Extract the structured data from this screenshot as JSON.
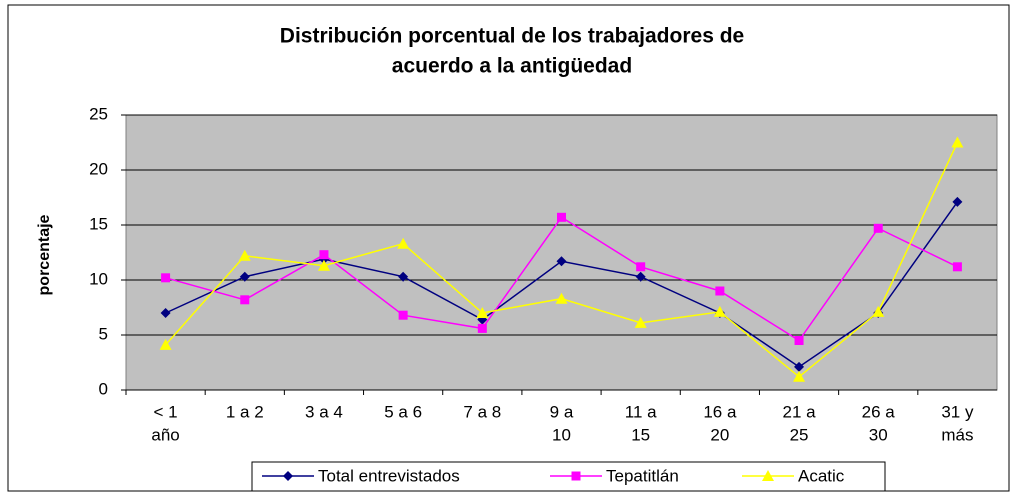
{
  "chart_data": {
    "type": "line",
    "title": [
      "Distribución porcentual de los trabajadores de",
      "acuerdo a la antigüedad"
    ],
    "y_label": "porcentaje",
    "categories": [
      [
        "< 1",
        "año"
      ],
      [
        "1 a 2"
      ],
      [
        "3 a 4"
      ],
      [
        "5 a 6"
      ],
      [
        "7 a 8"
      ],
      [
        "9 a",
        "10"
      ],
      [
        "11 a",
        "15"
      ],
      [
        "16 a",
        "20"
      ],
      [
        "21 a",
        "25"
      ],
      [
        "26 a",
        "30"
      ],
      [
        "31 y",
        "más"
      ]
    ],
    "series": [
      {
        "name": "Total entrevistados",
        "color": "#000080",
        "marker": "diamond",
        "values": [
          7.0,
          10.3,
          11.9,
          10.3,
          6.4,
          11.7,
          10.3,
          7.0,
          2.1,
          7.0,
          17.1
        ]
      },
      {
        "name": "Tepatitlán",
        "color": "#ff00ff",
        "marker": "square",
        "values": [
          10.2,
          8.2,
          12.3,
          6.8,
          5.6,
          15.7,
          11.2,
          9.0,
          4.5,
          14.7,
          11.2
        ]
      },
      {
        "name": "Acatic",
        "color": "#ffff00",
        "marker": "triangle",
        "values": [
          4.1,
          12.2,
          11.3,
          13.3,
          7.0,
          8.3,
          6.1,
          7.1,
          1.2,
          7.1,
          22.5
        ]
      }
    ],
    "ylim": [
      0,
      25
    ],
    "yticks": [
      0,
      5,
      10,
      15,
      20,
      25
    ],
    "grid": true,
    "legend": "bottom"
  }
}
